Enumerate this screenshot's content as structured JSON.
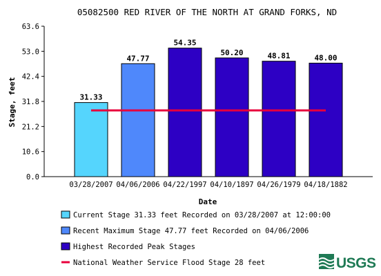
{
  "chart_data": {
    "type": "bar",
    "title": "05082500 RED RIVER OF THE NORTH AT GRAND FORKS, ND",
    "xlabel": "Date",
    "ylabel": "Stage, feet",
    "ylim": [
      0,
      63.6
    ],
    "yticks": [
      "0.0",
      "10.6",
      "21.2",
      "31.8",
      "42.4",
      "53.0",
      "63.6"
    ],
    "ytick_values": [
      0,
      10.6,
      21.2,
      31.8,
      42.4,
      53.0,
      63.6
    ],
    "categories": [
      "03/28/2007",
      "04/06/2006",
      "04/22/1997",
      "04/10/1897",
      "04/26/1979",
      "04/18/1882"
    ],
    "values": [
      31.33,
      47.77,
      54.35,
      50.2,
      48.81,
      48.0
    ],
    "value_labels": [
      "31.33",
      "47.77",
      "54.35",
      "50.20",
      "48.81",
      "48.00"
    ],
    "bar_types": [
      "current",
      "recent",
      "peak",
      "peak",
      "peak",
      "peak"
    ],
    "flood_stage": 28,
    "colors": {
      "current": "#55d5fd",
      "recent": "#4f88fb",
      "peak": "#2d00c4",
      "flood_line": "#e8003c",
      "axis": "#000000"
    },
    "legend": [
      {
        "key": "current",
        "text": "Current Stage 31.33 feet Recorded on 03/28/2007 at 12:00:00"
      },
      {
        "key": "recent",
        "text": "Recent Maximum Stage 47.77 feet Recorded on 04/06/2006"
      },
      {
        "key": "peak",
        "text": "Highest Recorded Peak Stages"
      },
      {
        "key": "flood_line",
        "text": "National Weather Service Flood Stage 28 feet"
      }
    ],
    "legend_placement": "bottom-left",
    "grid": false
  },
  "logo": {
    "text": "USGS",
    "color": "#1f7a55",
    "icon": "usgs-wave-logo"
  }
}
